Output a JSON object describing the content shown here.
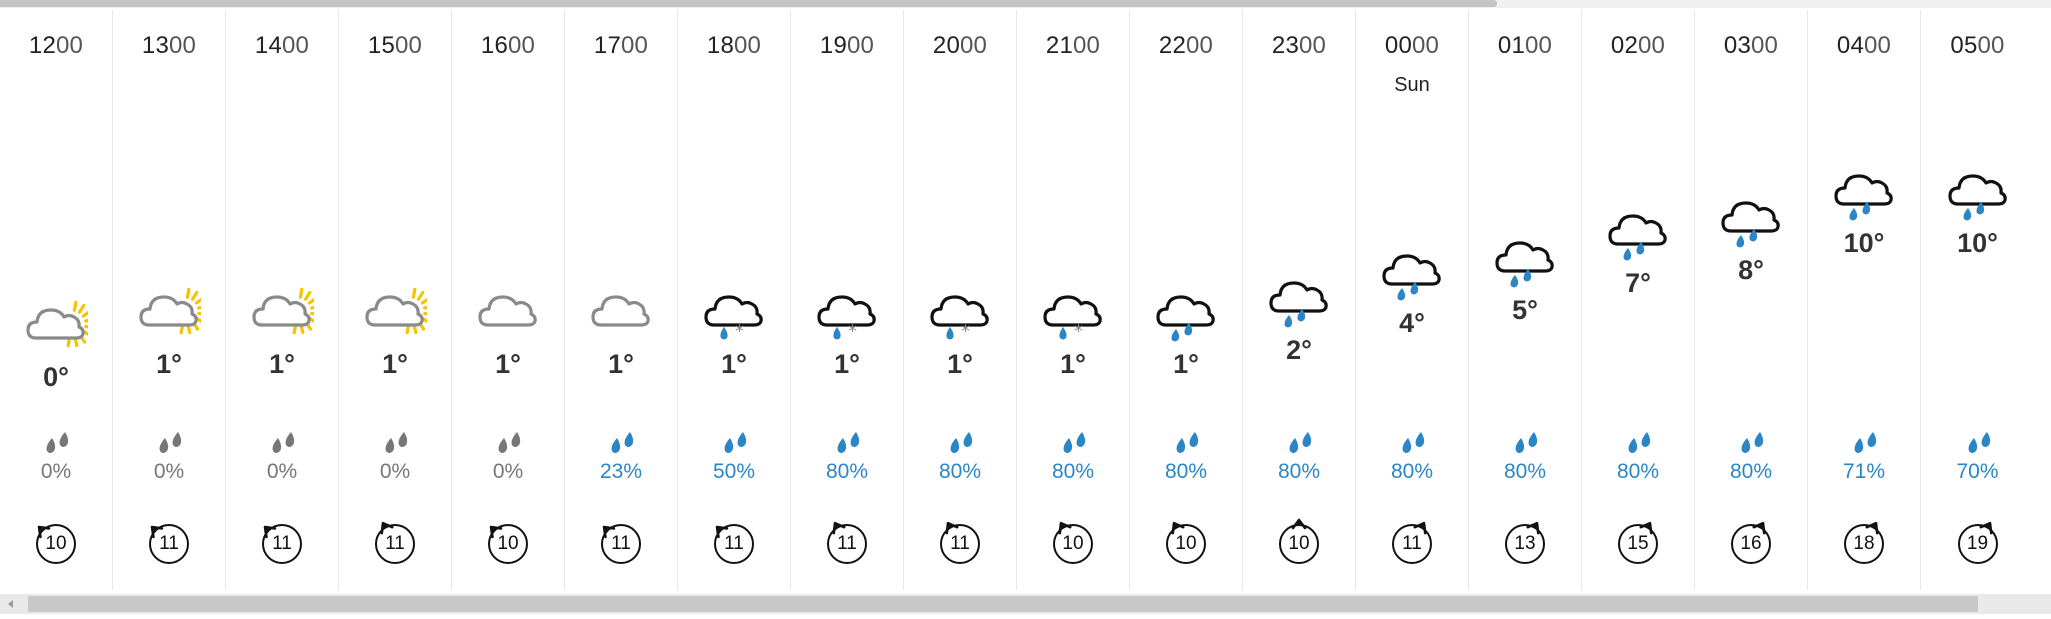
{
  "forecast": {
    "hours": [
      {
        "hour": "12",
        "min": "00",
        "day": "",
        "icon": "sun-cloud-icon",
        "temp": "0°",
        "precip": "0%",
        "precip_active": false,
        "wind": "10",
        "wind_dir": 315
      },
      {
        "hour": "13",
        "min": "00",
        "day": "",
        "icon": "sun-cloud-icon",
        "temp": "1°",
        "precip": "0%",
        "precip_active": false,
        "wind": "11",
        "wind_dir": 315
      },
      {
        "hour": "14",
        "min": "00",
        "day": "",
        "icon": "sun-cloud-icon",
        "temp": "1°",
        "precip": "0%",
        "precip_active": false,
        "wind": "11",
        "wind_dir": 315
      },
      {
        "hour": "15",
        "min": "00",
        "day": "",
        "icon": "sun-cloud-icon",
        "temp": "1°",
        "precip": "0%",
        "precip_active": false,
        "wind": "11",
        "wind_dir": 330
      },
      {
        "hour": "16",
        "min": "00",
        "day": "",
        "icon": "cloud-icon",
        "temp": "1°",
        "precip": "0%",
        "precip_active": false,
        "wind": "10",
        "wind_dir": 315
      },
      {
        "hour": "17",
        "min": "00",
        "day": "",
        "icon": "cloud-icon",
        "temp": "1°",
        "precip": "23%",
        "precip_active": true,
        "wind": "11",
        "wind_dir": 315
      },
      {
        "hour": "18",
        "min": "00",
        "day": "",
        "icon": "sleet-icon",
        "temp": "1°",
        "precip": "50%",
        "precip_active": true,
        "wind": "11",
        "wind_dir": 315
      },
      {
        "hour": "19",
        "min": "00",
        "day": "",
        "icon": "sleet-icon",
        "temp": "1°",
        "precip": "80%",
        "precip_active": true,
        "wind": "11",
        "wind_dir": 330
      },
      {
        "hour": "20",
        "min": "00",
        "day": "",
        "icon": "sleet-icon",
        "temp": "1°",
        "precip": "80%",
        "precip_active": true,
        "wind": "11",
        "wind_dir": 330
      },
      {
        "hour": "21",
        "min": "00",
        "day": "",
        "icon": "sleet-icon",
        "temp": "1°",
        "precip": "80%",
        "precip_active": true,
        "wind": "10",
        "wind_dir": 330
      },
      {
        "hour": "22",
        "min": "00",
        "day": "",
        "icon": "rain-icon",
        "temp": "1°",
        "precip": "80%",
        "precip_active": true,
        "wind": "10",
        "wind_dir": 330
      },
      {
        "hour": "23",
        "min": "00",
        "day": "",
        "icon": "rain-icon",
        "temp": "2°",
        "precip": "80%",
        "precip_active": true,
        "wind": "10",
        "wind_dir": 0
      },
      {
        "hour": "00",
        "min": "00",
        "day": "Sun",
        "icon": "rain-icon",
        "temp": "4°",
        "precip": "80%",
        "precip_active": true,
        "wind": "11",
        "wind_dir": 30
      },
      {
        "hour": "01",
        "min": "00",
        "day": "",
        "icon": "rain-icon",
        "temp": "5°",
        "precip": "80%",
        "precip_active": true,
        "wind": "13",
        "wind_dir": 30
      },
      {
        "hour": "02",
        "min": "00",
        "day": "",
        "icon": "rain-icon",
        "temp": "7°",
        "precip": "80%",
        "precip_active": true,
        "wind": "15",
        "wind_dir": 30
      },
      {
        "hour": "03",
        "min": "00",
        "day": "",
        "icon": "rain-icon",
        "temp": "8°",
        "precip": "80%",
        "precip_active": true,
        "wind": "16",
        "wind_dir": 30
      },
      {
        "hour": "04",
        "min": "00",
        "day": "",
        "icon": "rain-icon",
        "temp": "10°",
        "precip": "71%",
        "precip_active": true,
        "wind": "18",
        "wind_dir": 30
      },
      {
        "hour": "05",
        "min": "00",
        "day": "",
        "icon": "rain-icon",
        "temp": "10°",
        "precip": "70%",
        "precip_active": true,
        "wind": "19",
        "wind_dir": 30
      }
    ]
  },
  "colors": {
    "precip_active": "#2b86c5",
    "precip_inactive": "#777777",
    "sun": "#f5c400",
    "cloud_light": "#8a8a8a",
    "cloud_dark": "#111111"
  }
}
